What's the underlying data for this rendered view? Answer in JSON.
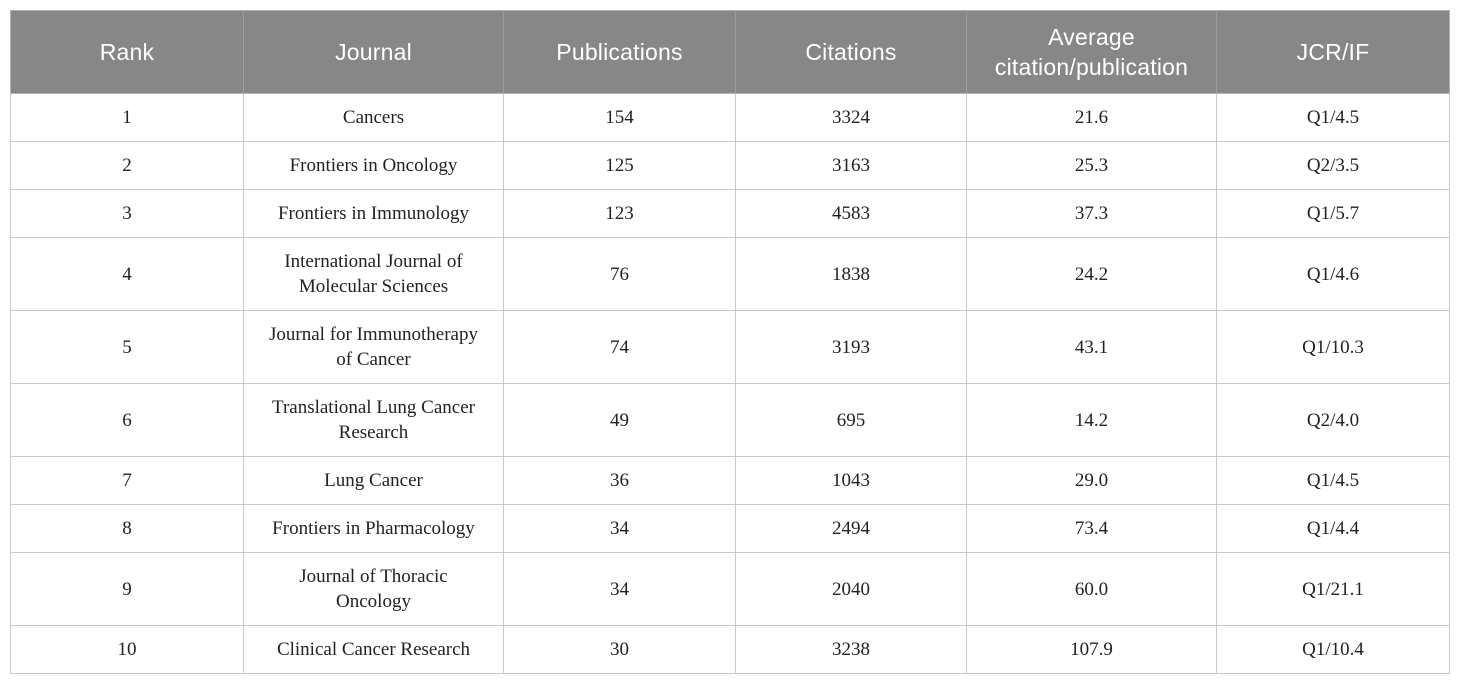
{
  "colors": {
    "header_bg": "#878787",
    "header_text": "#ffffff",
    "body_border": "#c9c9c9",
    "body_text": "#222222"
  },
  "table": {
    "columns": [
      {
        "key": "rank",
        "label": "Rank"
      },
      {
        "key": "journal",
        "label": "Journal"
      },
      {
        "key": "publications",
        "label": "Publications"
      },
      {
        "key": "citations",
        "label": "Citations"
      },
      {
        "key": "avg-citation-publication",
        "label": "Average citation/publication"
      },
      {
        "key": "jcr-if",
        "label": "JCR/IF"
      }
    ],
    "rows": [
      [
        "1",
        "Cancers",
        "154",
        "3324",
        "21.6",
        "Q1/4.5"
      ],
      [
        "2",
        "Frontiers in Oncology",
        "125",
        "3163",
        "25.3",
        "Q2/3.5"
      ],
      [
        "3",
        "Frontiers in Immunology",
        "123",
        "4583",
        "37.3",
        "Q1/5.7"
      ],
      [
        "4",
        "International Journal of Molecular Sciences",
        "76",
        "1838",
        "24.2",
        "Q1/4.6"
      ],
      [
        "5",
        "Journal for Immunotherapy of Cancer",
        "74",
        "3193",
        "43.1",
        "Q1/10.3"
      ],
      [
        "6",
        "Translational Lung Cancer Research",
        "49",
        "695",
        "14.2",
        "Q2/4.0"
      ],
      [
        "7",
        "Lung Cancer",
        "36",
        "1043",
        "29.0",
        "Q1/4.5"
      ],
      [
        "8",
        "Frontiers in Pharmacology",
        "34",
        "2494",
        "73.4",
        "Q1/4.4"
      ],
      [
        "9",
        "Journal of Thoracic Oncology",
        "34",
        "2040",
        "60.0",
        "Q1/21.1"
      ],
      [
        "10",
        "Clinical Cancer Research",
        "30",
        "3238",
        "107.9",
        "Q1/10.4"
      ]
    ]
  }
}
